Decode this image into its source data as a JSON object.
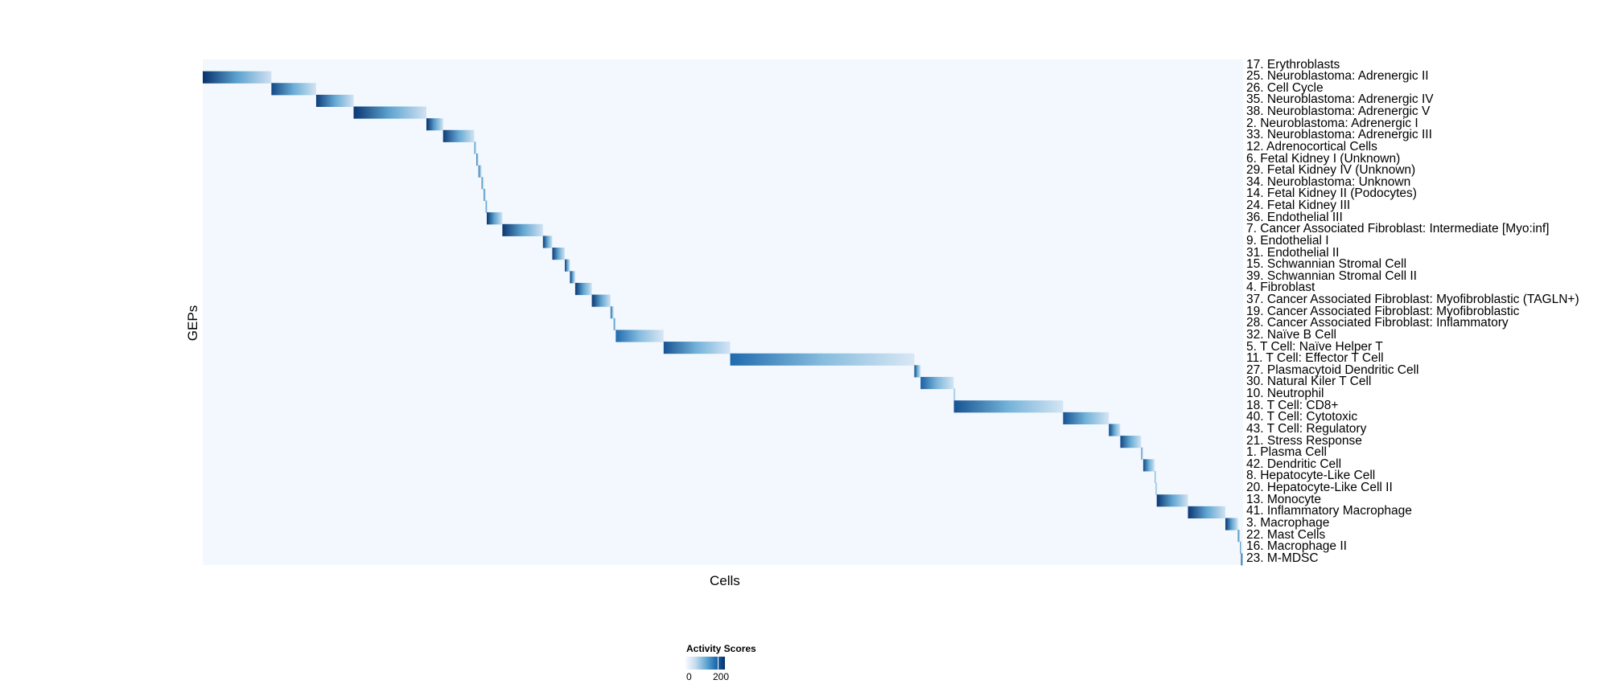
{
  "chart_data": {
    "type": "heatmap",
    "xlabel": "Cells",
    "ylabel": "GEPs",
    "legend": {
      "title": "Activity Scores",
      "ticks": [
        "0",
        "200"
      ],
      "range": [
        0,
        220
      ],
      "position": "bottom"
    },
    "colors": {
      "low": "#f7fbff",
      "mid": "#6baed6",
      "high": "#08306b"
    },
    "rows": [
      {
        "label": "17. Erythroblasts",
        "cells": [
          0.0,
          0.0
        ],
        "peak": 10
      },
      {
        "label": "25. Neuroblastoma: Adrenergic II",
        "cells": [
          0.0,
          0.066
        ],
        "peak": 220
      },
      {
        "label": "26. Cell Cycle",
        "cells": [
          0.066,
          0.109
        ],
        "peak": 200
      },
      {
        "label": "35. Neuroblastoma: Adrenergic IV",
        "cells": [
          0.109,
          0.145
        ],
        "peak": 210
      },
      {
        "label": "38. Neuroblastoma: Adrenergic V",
        "cells": [
          0.145,
          0.215
        ],
        "peak": 215
      },
      {
        "label": "2. Neuroblastoma: Adrenergic I",
        "cells": [
          0.215,
          0.231
        ],
        "peak": 220
      },
      {
        "label": "33. Neuroblastoma: Adrenergic III",
        "cells": [
          0.231,
          0.261
        ],
        "peak": 210
      },
      {
        "label": "12. Adrenocortical Cells",
        "cells": [
          0.261,
          0.263
        ],
        "peak": 150
      },
      {
        "label": "6. Fetal Kidney I (Unknown)",
        "cells": [
          0.263,
          0.265
        ],
        "peak": 180
      },
      {
        "label": "29. Fetal Kidney IV (Unknown)",
        "cells": [
          0.265,
          0.268
        ],
        "peak": 170
      },
      {
        "label": "34. Neuroblastoma: Unknown",
        "cells": [
          0.268,
          0.27
        ],
        "peak": 170
      },
      {
        "label": "14. Fetal Kidney II (Podocytes)",
        "cells": [
          0.27,
          0.272
        ],
        "peak": 170
      },
      {
        "label": "24. Fetal Kidney III",
        "cells": [
          0.272,
          0.273
        ],
        "peak": 170
      },
      {
        "label": "36. Endothelial III",
        "cells": [
          0.273,
          0.288
        ],
        "peak": 215
      },
      {
        "label": "7. Cancer Associated Fibroblast: Intermediate [Myo:inf]",
        "cells": [
          0.288,
          0.327
        ],
        "peak": 215
      },
      {
        "label": "9. Endothelial I",
        "cells": [
          0.327,
          0.336
        ],
        "peak": 210
      },
      {
        "label": "31. Endothelial II",
        "cells": [
          0.336,
          0.348
        ],
        "peak": 210
      },
      {
        "label": "15. Schwannian Stromal Cell",
        "cells": [
          0.348,
          0.353
        ],
        "peak": 210
      },
      {
        "label": "39. Schwannian Stromal Cell II",
        "cells": [
          0.353,
          0.358
        ],
        "peak": 215
      },
      {
        "label": "4. Fibroblast",
        "cells": [
          0.358,
          0.374
        ],
        "peak": 215
      },
      {
        "label": "37. Cancer Associated Fibroblast: Myofibroblastic (TAGLN+)",
        "cells": [
          0.374,
          0.392
        ],
        "peak": 215
      },
      {
        "label": "19. Cancer Associated Fibroblast: Myofibroblastic",
        "cells": [
          0.392,
          0.395
        ],
        "peak": 180
      },
      {
        "label": "28. Cancer Associated Fibroblast: Inflammatory",
        "cells": [
          0.395,
          0.397
        ],
        "peak": 160
      },
      {
        "label": "32. Naïve B Cell",
        "cells": [
          0.397,
          0.443
        ],
        "peak": 170
      },
      {
        "label": "5. T Cell: Naïve Helper T",
        "cells": [
          0.443,
          0.507
        ],
        "peak": 190
      },
      {
        "label": "11. T Cell: Effector T Cell",
        "cells": [
          0.507,
          0.684
        ],
        "peak": 170
      },
      {
        "label": "27. Plasmacytoid Dendritic Cell",
        "cells": [
          0.684,
          0.69
        ],
        "peak": 200
      },
      {
        "label": "30. Natural Kiler T Cell",
        "cells": [
          0.69,
          0.722
        ],
        "peak": 180
      },
      {
        "label": "10. Neutrophil",
        "cells": [
          0.722,
          0.723
        ],
        "peak": 120
      },
      {
        "label": "18. T Cell: CD8+",
        "cells": [
          0.722,
          0.827
        ],
        "peak": 190
      },
      {
        "label": "40. T Cell: Cytotoxic",
        "cells": [
          0.827,
          0.871
        ],
        "peak": 190
      },
      {
        "label": "43. T Cell: Regulatory",
        "cells": [
          0.871,
          0.882
        ],
        "peak": 200
      },
      {
        "label": "21. Stress Response",
        "cells": [
          0.882,
          0.902
        ],
        "peak": 200
      },
      {
        "label": "1. Plasma Cell",
        "cells": [
          0.902,
          0.904
        ],
        "peak": 150
      },
      {
        "label": "42. Dendritic Cell",
        "cells": [
          0.904,
          0.915
        ],
        "peak": 200
      },
      {
        "label": "8. Hepatocyte-Like Cell",
        "cells": [
          0.915,
          0.916
        ],
        "peak": 120
      },
      {
        "label": "20. Hepatocyte-Like Cell II",
        "cells": [
          0.916,
          0.917
        ],
        "peak": 120
      },
      {
        "label": "13. Monocyte",
        "cells": [
          0.917,
          0.947
        ],
        "peak": 215
      },
      {
        "label": "41. Inflammatory Macrophage",
        "cells": [
          0.947,
          0.983
        ],
        "peak": 215
      },
      {
        "label": "3. Macrophage",
        "cells": [
          0.983,
          0.995
        ],
        "peak": 215
      },
      {
        "label": "22. Mast Cells",
        "cells": [
          0.995,
          0.997
        ],
        "peak": 180
      },
      {
        "label": "16. Macrophage II",
        "cells": [
          0.997,
          0.998
        ],
        "peak": 150
      },
      {
        "label": "23. M-MDSC",
        "cells": [
          0.998,
          1.0
        ],
        "peak": 215
      }
    ]
  }
}
